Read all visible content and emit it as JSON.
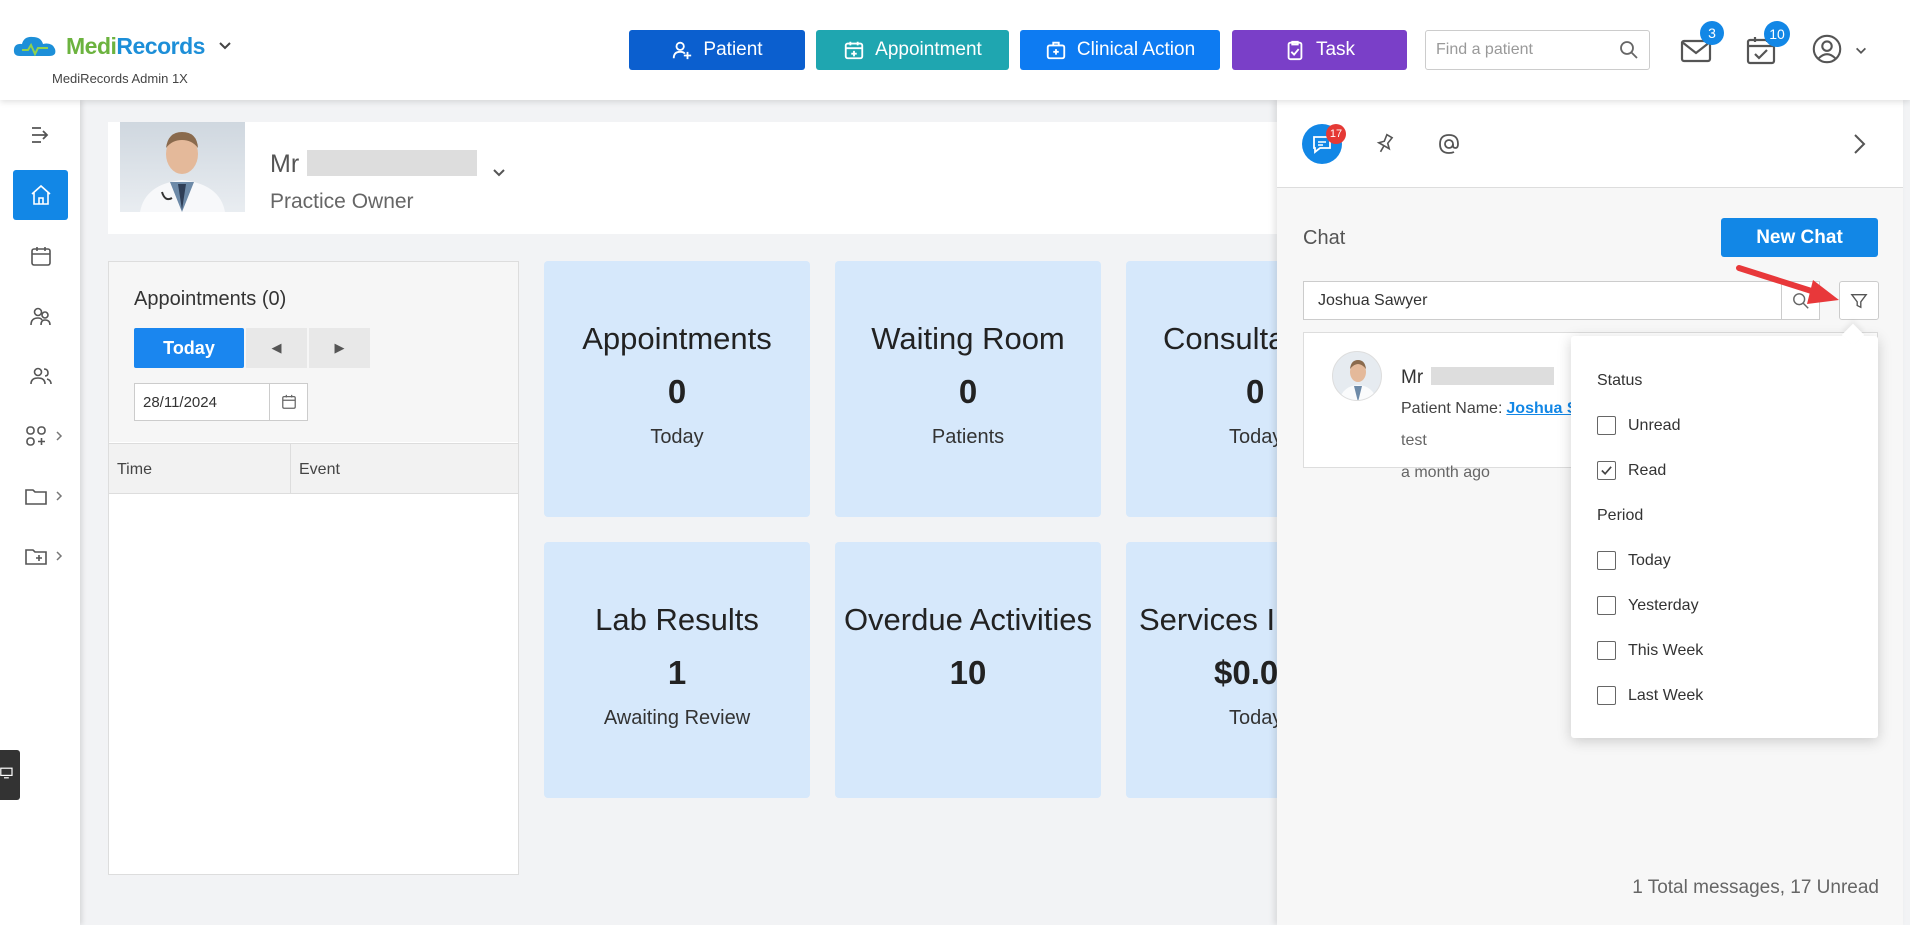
{
  "header": {
    "logo_text_a": "Medi",
    "logo_text_b": "Records",
    "logo_subtitle": "MediRecords Admin 1X",
    "buttons": {
      "patient": "Patient",
      "appointment": "Appointment",
      "clinical_action": "Clinical Action",
      "task": "Task"
    },
    "search_placeholder": "Find a patient",
    "mail_badge": "3",
    "tasks_badge": "10"
  },
  "profile": {
    "salutation": "Mr",
    "role": "Practice Owner"
  },
  "appointments": {
    "title": "Appointments (0)",
    "today_label": "Today",
    "prev_label": "◀",
    "next_label": "▶",
    "date": "28/11/2024",
    "columns": [
      "Time",
      "Event"
    ]
  },
  "tiles": [
    {
      "title": "Appointments",
      "value": "0",
      "sub": "Today"
    },
    {
      "title": "Waiting Room",
      "value": "0",
      "sub": "Patients"
    },
    {
      "title": "Consulta",
      "value": "0",
      "sub": "Today"
    },
    {
      "title": "Lab Results",
      "value": "1",
      "sub": "Awaiting Review"
    },
    {
      "title": "Overdue Activities",
      "value": "10",
      "sub": ""
    },
    {
      "title": "Services In",
      "value": "$0.0",
      "sub": "Today"
    }
  ],
  "chat": {
    "tab_badge": "17",
    "title": "Chat",
    "new_chat_label": "New Chat",
    "search_value": "Joshua Sawyer",
    "message": {
      "salutation": "Mr",
      "patient_label": "Patient Name:",
      "patient_link": "Joshua S",
      "text": "test",
      "time": "a month ago"
    },
    "footer": "1 Total messages, 17 Unread"
  },
  "filter": {
    "status_heading": "Status",
    "status_options": [
      {
        "label": "Unread",
        "checked": false
      },
      {
        "label": "Read",
        "checked": true
      }
    ],
    "period_heading": "Period",
    "period_options": [
      {
        "label": "Today",
        "checked": false
      },
      {
        "label": "Yesterday",
        "checked": false
      },
      {
        "label": "This Week",
        "checked": false
      },
      {
        "label": "Last Week",
        "checked": false
      }
    ]
  },
  "colors": {
    "primary": "#1287e6",
    "patient_btn": "#0b5fcf",
    "appointment_btn": "#1fa6b0",
    "clinical_btn": "#0d7bf2",
    "task_btn": "#7a3fc8",
    "tile_bg": "#d6e8fb",
    "annotation_arrow": "#e8383a"
  }
}
